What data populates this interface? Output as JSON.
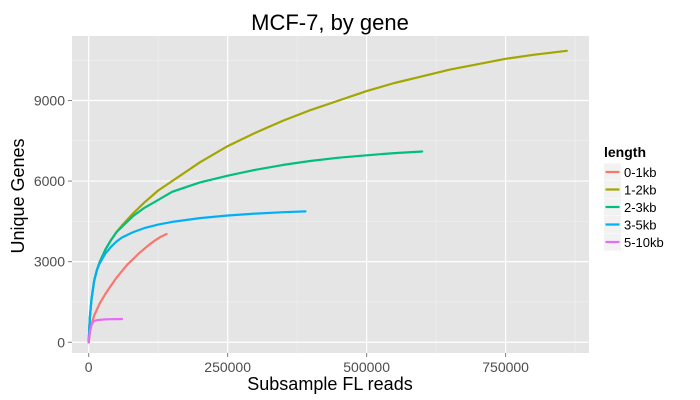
{
  "chart_data": {
    "type": "line",
    "title": "MCF-7, by gene",
    "xlabel": "Subsample FL reads",
    "ylabel": "Unique Genes",
    "xlim": [
      -30000,
      900000
    ],
    "ylim": [
      -400,
      11400
    ],
    "xticks": [
      0,
      250000,
      500000,
      750000
    ],
    "xtick_labels": [
      "0",
      "250000",
      "500000",
      "750000"
    ],
    "yticks": [
      0,
      3000,
      6000,
      9000
    ],
    "ytick_labels": [
      "0",
      "3000",
      "6000",
      "9000"
    ],
    "grid": true,
    "background": "#e5e5e5",
    "legend": {
      "title": "length",
      "position": "right"
    },
    "series": [
      {
        "name": "0-1kb",
        "color": "#F8766D",
        "x": [
          0,
          2000,
          5000,
          10000,
          20000,
          30000,
          40000,
          50000,
          60000,
          70000,
          80000,
          90000,
          100000,
          110000,
          120000,
          130000,
          140000
        ],
        "y": [
          0,
          350,
          650,
          1000,
          1450,
          1800,
          2100,
          2400,
          2650,
          2900,
          3100,
          3300,
          3480,
          3650,
          3800,
          3930,
          4030
        ]
      },
      {
        "name": "1-2kb",
        "color": "#A3A500",
        "x": [
          0,
          2000,
          5000,
          10000,
          15000,
          20000,
          30000,
          40000,
          50000,
          60000,
          80000,
          100000,
          125000,
          150000,
          200000,
          250000,
          300000,
          350000,
          400000,
          450000,
          500000,
          550000,
          600000,
          650000,
          700000,
          750000,
          800000,
          860000
        ],
        "y": [
          0,
          900,
          1600,
          2300,
          2700,
          3000,
          3450,
          3800,
          4100,
          4350,
          4800,
          5200,
          5650,
          6000,
          6700,
          7300,
          7800,
          8250,
          8650,
          9000,
          9350,
          9650,
          9900,
          10150,
          10350,
          10550,
          10700,
          10850
        ]
      },
      {
        "name": "2-3kb",
        "color": "#00BF7D",
        "x": [
          0,
          2000,
          5000,
          10000,
          15000,
          20000,
          30000,
          40000,
          50000,
          60000,
          80000,
          100000,
          125000,
          150000,
          200000,
          250000,
          300000,
          350000,
          400000,
          450000,
          500000,
          550000,
          600000
        ],
        "y": [
          0,
          900,
          1600,
          2300,
          2700,
          3000,
          3450,
          3800,
          4100,
          4300,
          4700,
          5000,
          5300,
          5600,
          5950,
          6200,
          6420,
          6600,
          6750,
          6870,
          6960,
          7040,
          7100
        ]
      },
      {
        "name": "3-5kb",
        "color": "#00B0F6",
        "x": [
          0,
          2000,
          5000,
          10000,
          15000,
          20000,
          30000,
          40000,
          50000,
          60000,
          80000,
          100000,
          125000,
          150000,
          200000,
          250000,
          300000,
          350000,
          390000
        ],
        "y": [
          0,
          900,
          1600,
          2300,
          2700,
          2950,
          3300,
          3550,
          3750,
          3900,
          4100,
          4250,
          4380,
          4480,
          4620,
          4720,
          4790,
          4840,
          4870
        ]
      },
      {
        "name": "5-10kb",
        "color": "#E76BF3",
        "x": [
          0,
          2000,
          5000,
          8000,
          10000,
          15000,
          20000,
          30000,
          40000,
          50000,
          60000
        ],
        "y": [
          0,
          400,
          650,
          750,
          790,
          820,
          835,
          850,
          858,
          862,
          865
        ]
      }
    ]
  }
}
